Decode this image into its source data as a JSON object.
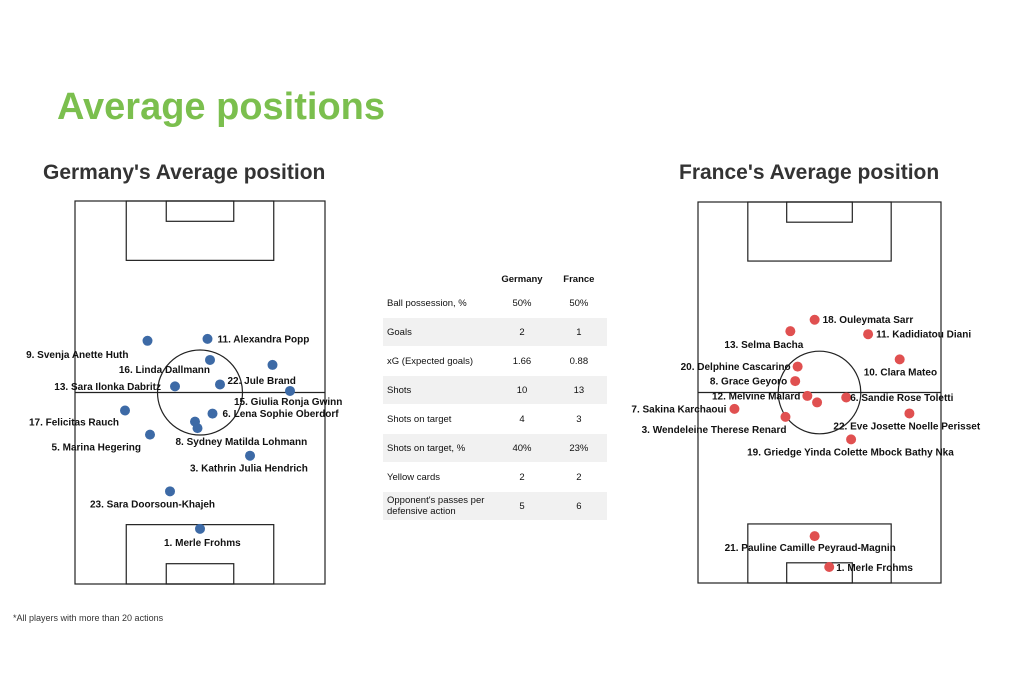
{
  "title": "Average positions",
  "footnote": "*All players with more than 20 actions",
  "colors": {
    "title_green": "#7bbf4e",
    "germany_dot": "#3d6aa6",
    "france_dot": "#e05050"
  },
  "stats_table": {
    "columns": [
      "Germany",
      "France"
    ],
    "rows": [
      {
        "label": "Ball possession, %",
        "germany": "50%",
        "france": "50%"
      },
      {
        "label": "Goals",
        "germany": "2",
        "france": "1"
      },
      {
        "label": "xG (Expected goals)",
        "germany": "1.66",
        "france": "0.88"
      },
      {
        "label": "Shots",
        "germany": "10",
        "france": "13"
      },
      {
        "label": "Shots on target",
        "germany": "4",
        "france": "3"
      },
      {
        "label": "Shots on target, %",
        "germany": "40%",
        "france": "23%"
      },
      {
        "label": "Yellow cards",
        "germany": "2",
        "france": "2"
      },
      {
        "label": "Opponent's passes per defensive action",
        "germany": "5",
        "france": "6"
      }
    ]
  },
  "chart_data": [
    {
      "type": "scatter",
      "title": "Germany's Average position",
      "axes": {
        "x_range": [
          0,
          100
        ],
        "y_range": [
          0,
          100
        ],
        "note": "x = width of pitch (left to right), y = length of pitch (top to bottom)"
      },
      "players": [
        {
          "label": "11. Alexandra Popp",
          "x": 53,
          "y": 36.0
        },
        {
          "label": "9. Svenja Anette Huth",
          "x": 29,
          "y": 36.5
        },
        {
          "label": "16. Linda Dallmann",
          "x": 54,
          "y": 41.5
        },
        {
          "label": "22. Jule Brand",
          "x": 79,
          "y": 42.8
        },
        {
          "label": "13. Sara Ilonka Dabritz",
          "x": 40,
          "y": 48.4
        },
        {
          "label": "",
          "x": 58,
          "y": 47.9
        },
        {
          "label": "15. Giulia Ronja Gwinn",
          "x": 86,
          "y": 49.6
        },
        {
          "label": "17. Felicitas Rauch",
          "x": 20,
          "y": 54.7
        },
        {
          "label": "6. Lena Sophie Oberdorf",
          "x": 55,
          "y": 55.5
        },
        {
          "label": "",
          "x": 48,
          "y": 57.6
        },
        {
          "label": "8. Sydney Matilda Lohmann",
          "x": 49,
          "y": 59.3
        },
        {
          "label": "5. Marina Hegering",
          "x": 30,
          "y": 61.0
        },
        {
          "label": "3. Kathrin Julia Hendrich",
          "x": 70,
          "y": 66.5
        },
        {
          "label": "23. Sara Doorsoun-Khajeh",
          "x": 38,
          "y": 75.8
        },
        {
          "label": "1. Merle Frohms",
          "x": 50,
          "y": 85.6
        }
      ]
    },
    {
      "type": "scatter",
      "title": "France's Average position",
      "axes": {
        "x_range": [
          0,
          100
        ],
        "y_range": [
          0,
          100
        ],
        "note": "x = width of pitch (left to right), y = length of pitch (top to bottom)"
      },
      "players": [
        {
          "label": "18. Ouleymata Sarr",
          "x": 48,
          "y": 30.9
        },
        {
          "label": "13. Selma Bacha",
          "x": 38,
          "y": 33.9
        },
        {
          "label": "11. Kadidiatou Diani",
          "x": 70,
          "y": 34.7
        },
        {
          "label": "10. Clara Mateo",
          "x": 83,
          "y": 41.3
        },
        {
          "label": "20. Delphine Cascarino",
          "x": 41,
          "y": 43.2
        },
        {
          "label": "8. Grace Geyoro",
          "x": 40,
          "y": 47.0
        },
        {
          "label": "12. Melvine Malard",
          "x": 45,
          "y": 50.9
        },
        {
          "label": "",
          "x": 49,
          "y": 52.6
        },
        {
          "label": "6. Sandie Rose Toletti",
          "x": 61,
          "y": 51.3
        },
        {
          "label": "7. Sakina Karchaoui",
          "x": 15,
          "y": 54.3
        },
        {
          "label": "3. Wendeleine Therese Renard",
          "x": 36,
          "y": 56.4
        },
        {
          "label": "22. Eve Josette Noelle Perisset",
          "x": 87,
          "y": 55.5
        },
        {
          "label": "19. Griedge Yinda Colette Mbock Bathy Nka",
          "x": 63,
          "y": 62.3
        },
        {
          "label": "21. Pauline Camille Peyraud-Magnin",
          "x": 48,
          "y": 87.7
        },
        {
          "label": "1. Merle Frohms",
          "x": 54,
          "y": 95.8
        }
      ]
    }
  ]
}
